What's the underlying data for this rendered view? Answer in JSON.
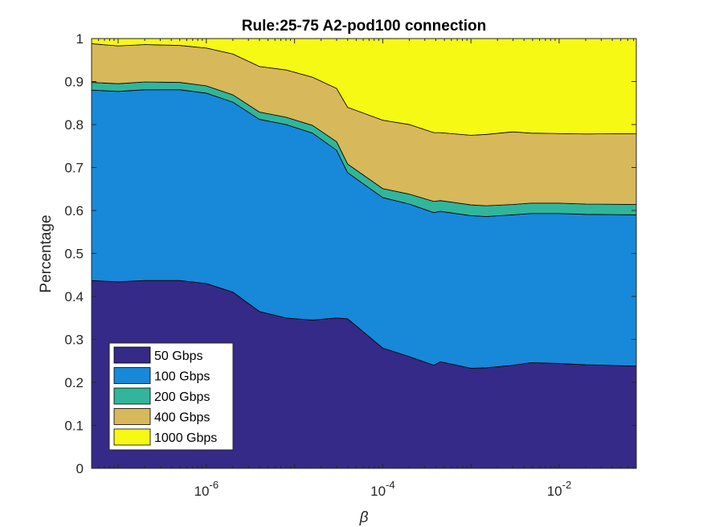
{
  "chart_data": {
    "type": "area",
    "title": "Rule:25-75 A2-pod100 connection",
    "xlabel": "β",
    "ylabel": "Percentage",
    "xscale": "log",
    "xlim": [
      5e-08,
      0.075
    ],
    "ylim": [
      0,
      1
    ],
    "yticks": [
      "0",
      "0.1",
      "0.2",
      "0.3",
      "0.4",
      "0.5",
      "0.6",
      "0.7",
      "0.8",
      "0.9",
      "1"
    ],
    "xticks": [
      {
        "base": "10",
        "exp": "-6",
        "value": 1e-06
      },
      {
        "base": "10",
        "exp": "-4",
        "value": 0.0001
      },
      {
        "base": "10",
        "exp": "-2",
        "value": 0.01
      }
    ],
    "legend_location": "bottom-left",
    "x": [
      5e-08,
      1e-07,
      2e-07,
      5e-07,
      1e-06,
      2e-06,
      4e-06,
      8e-06,
      1.6e-05,
      3e-05,
      4e-05,
      0.0001,
      0.0002,
      0.00038,
      0.00045,
      0.001,
      0.0015,
      0.003,
      0.0048,
      0.01,
      0.02,
      0.075
    ],
    "series": [
      {
        "name": "50 Gbps",
        "color": "#352a87",
        "values": [
          0.437,
          0.434,
          0.437,
          0.437,
          0.43,
          0.41,
          0.365,
          0.35,
          0.345,
          0.35,
          0.348,
          0.28,
          0.26,
          0.24,
          0.248,
          0.233,
          0.234,
          0.24,
          0.246,
          0.244,
          0.241,
          0.238
        ]
      },
      {
        "name": "100 Gbps",
        "color": "#1789d8",
        "values": [
          0.443,
          0.443,
          0.444,
          0.444,
          0.443,
          0.442,
          0.447,
          0.45,
          0.435,
          0.39,
          0.34,
          0.35,
          0.355,
          0.355,
          0.35,
          0.355,
          0.352,
          0.35,
          0.347,
          0.349,
          0.35,
          0.352
        ]
      },
      {
        "name": "200 Gbps",
        "color": "#31b69b",
        "values": [
          0.018,
          0.018,
          0.018,
          0.017,
          0.017,
          0.017,
          0.017,
          0.017,
          0.018,
          0.02,
          0.02,
          0.021,
          0.023,
          0.026,
          0.025,
          0.025,
          0.025,
          0.024,
          0.024,
          0.024,
          0.024,
          0.024
        ]
      },
      {
        "name": "400 Gbps",
        "color": "#d7b85a",
        "values": [
          0.09,
          0.088,
          0.087,
          0.086,
          0.088,
          0.095,
          0.106,
          0.11,
          0.112,
          0.124,
          0.132,
          0.159,
          0.162,
          0.16,
          0.158,
          0.162,
          0.166,
          0.169,
          0.163,
          0.162,
          0.163,
          0.165
        ]
      },
      {
        "name": "1000 Gbps",
        "color": "#f6f913",
        "values": [
          0.012,
          0.017,
          0.014,
          0.016,
          0.022,
          0.036,
          0.065,
          0.073,
          0.09,
          0.116,
          0.16,
          0.19,
          0.2,
          0.219,
          0.219,
          0.225,
          0.223,
          0.217,
          0.22,
          0.221,
          0.222,
          0.221
        ]
      }
    ]
  }
}
